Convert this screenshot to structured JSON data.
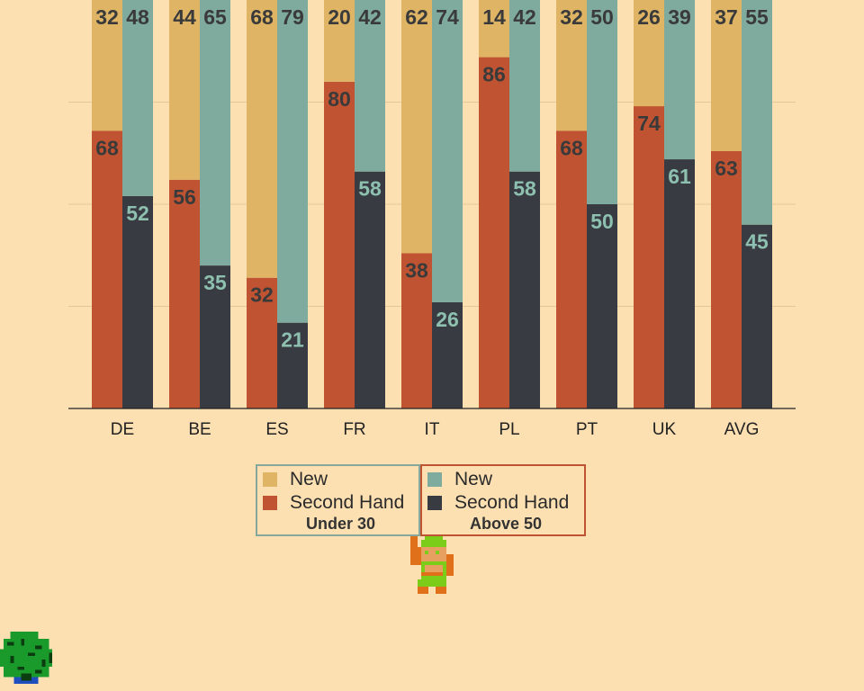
{
  "chart_data": {
    "type": "bar",
    "stacked": true,
    "categories": [
      "DE",
      "BE",
      "ES",
      "FR",
      "IT",
      "PL",
      "PT",
      "UK",
      "AVG"
    ],
    "groups": [
      {
        "name": "Under 30",
        "series": [
          {
            "name": "Second Hand",
            "values": [
              68,
              56,
              32,
              80,
              38,
              86,
              68,
              74,
              63
            ]
          },
          {
            "name": "New",
            "values": [
              32,
              44,
              68,
              20,
              62,
              14,
              32,
              26,
              37
            ]
          }
        ]
      },
      {
        "name": "Above 50",
        "series": [
          {
            "name": "Second Hand",
            "values": [
              52,
              35,
              21,
              58,
              26,
              58,
              50,
              61,
              45
            ]
          },
          {
            "name": "New",
            "values": [
              48,
              65,
              79,
              42,
              74,
              42,
              50,
              39,
              55
            ]
          }
        ]
      }
    ],
    "ylim": [
      0,
      100
    ],
    "grid": true,
    "legend_position": "bottom-center",
    "colors": {
      "under30_new": "#dfb565",
      "under30_second_hand": "#c05432",
      "above50_new": "#7eab9d",
      "above50_second_hand": "#383b42",
      "background": "#fde0b2"
    }
  },
  "legend": {
    "under30": {
      "new": "New",
      "second_hand": "Second Hand",
      "group": "Under 30"
    },
    "above50": {
      "new": "New",
      "second_hand": "Second Hand",
      "group": "Above 50"
    }
  },
  "decorations": {
    "character_sprite": "pixel-hero-icon",
    "tree_sprite": "pixel-tree-icon"
  }
}
